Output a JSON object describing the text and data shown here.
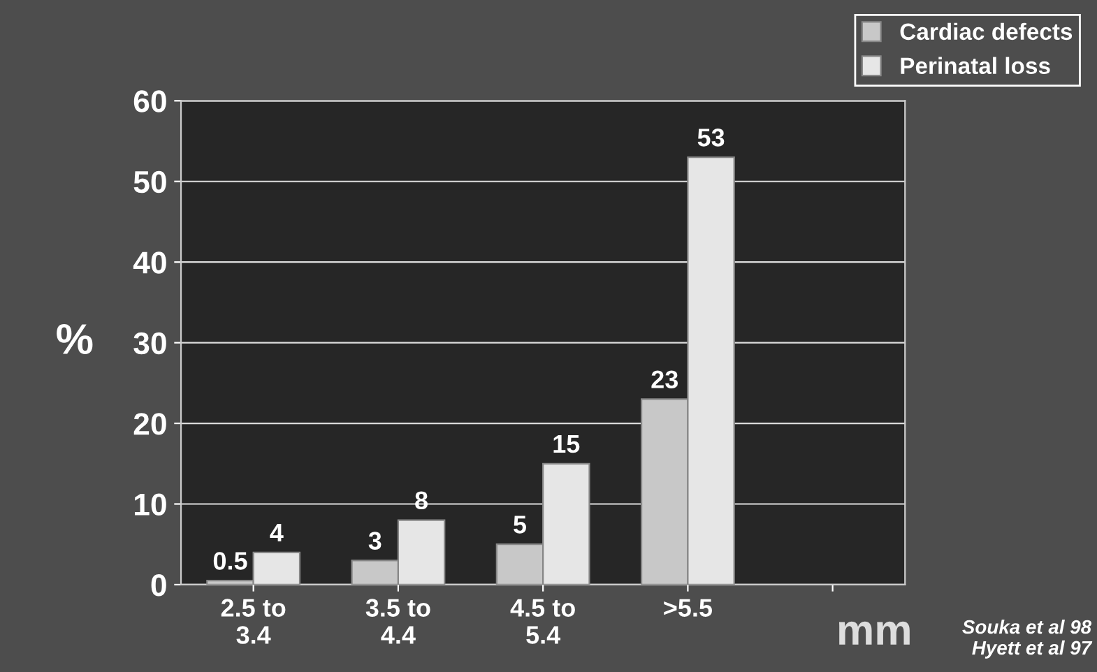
{
  "chart_data": {
    "type": "bar",
    "xlabel": "mm",
    "ylabel": "%",
    "categories": [
      "2.5 to\n3.4",
      "3.5 to\n4.4",
      "4.5 to\n5.4",
      ">5.5",
      null
    ],
    "series": [
      {
        "name": "Cardiac defects",
        "color": "#c8c8c8",
        "values": [
          0.5,
          3,
          5,
          23,
          null
        ]
      },
      {
        "name": "Perinatal loss",
        "color": "#e6e6e6",
        "values": [
          4,
          8,
          15,
          53,
          null
        ]
      }
    ],
    "ylim": [
      0,
      60
    ],
    "yticks": [
      0,
      10,
      20,
      30,
      40,
      50,
      60
    ],
    "grid": "y",
    "legend": "top right",
    "data_labels": true,
    "annotations": [
      "Souka et al 98\nHyett et al 97"
    ]
  }
}
